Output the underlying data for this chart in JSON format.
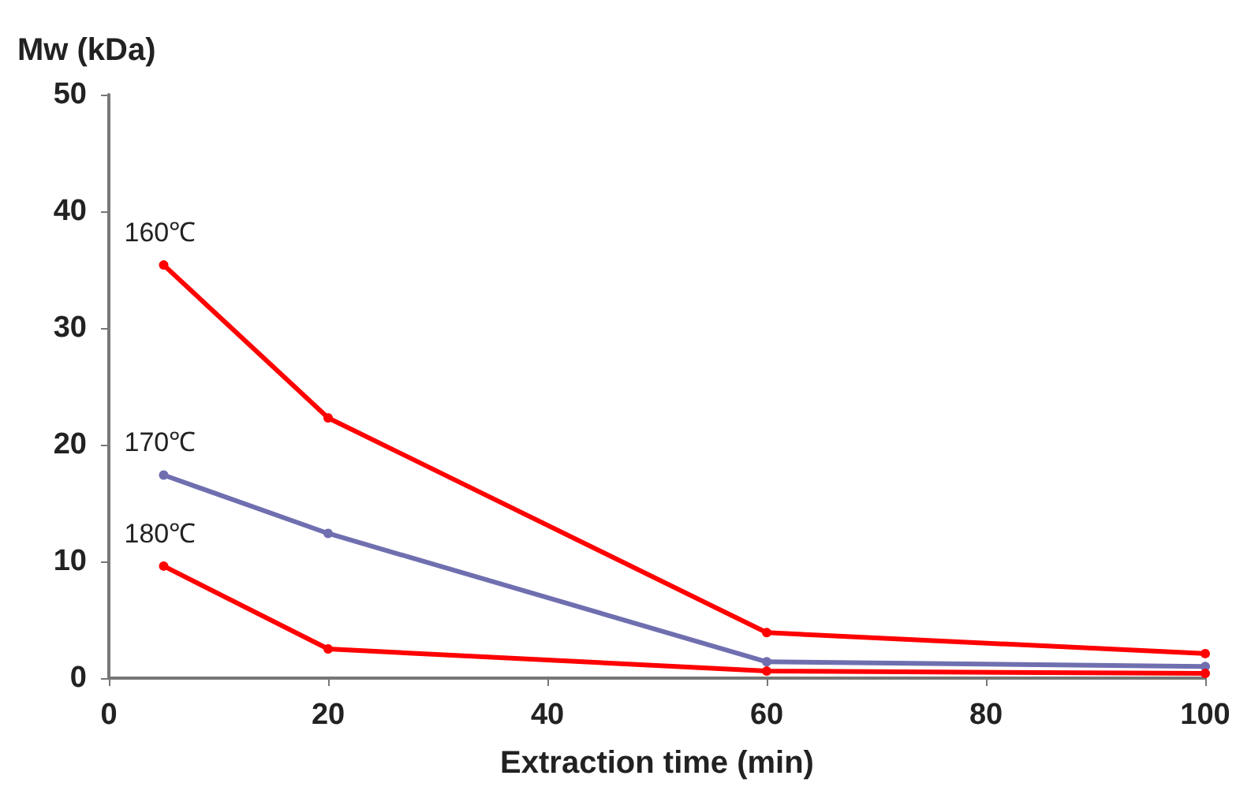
{
  "chart_data": {
    "type": "line",
    "xlabel": "Extraction time (min)",
    "ylabel": "Mw (kDa)",
    "x": [
      5,
      20,
      60,
      100
    ],
    "series": [
      {
        "name": "160℃",
        "color": "#ff0000",
        "values": [
          35.4,
          22.3,
          3.9,
          2.1
        ]
      },
      {
        "name": "170℃",
        "color": "#6f6fb0",
        "values": [
          17.4,
          12.4,
          1.4,
          1.0
        ]
      },
      {
        "name": "180℃",
        "color": "#ff0000",
        "values": [
          9.6,
          2.5,
          0.6,
          0.4
        ]
      }
    ],
    "xlim": [
      0,
      100
    ],
    "xticks": [
      0,
      20,
      40,
      60,
      80,
      100
    ],
    "ylim": [
      0,
      50
    ],
    "yticks": [
      0,
      10,
      20,
      30,
      40,
      50
    ],
    "grid": false,
    "legend": false,
    "marker": "circle",
    "line_style": "solid"
  }
}
